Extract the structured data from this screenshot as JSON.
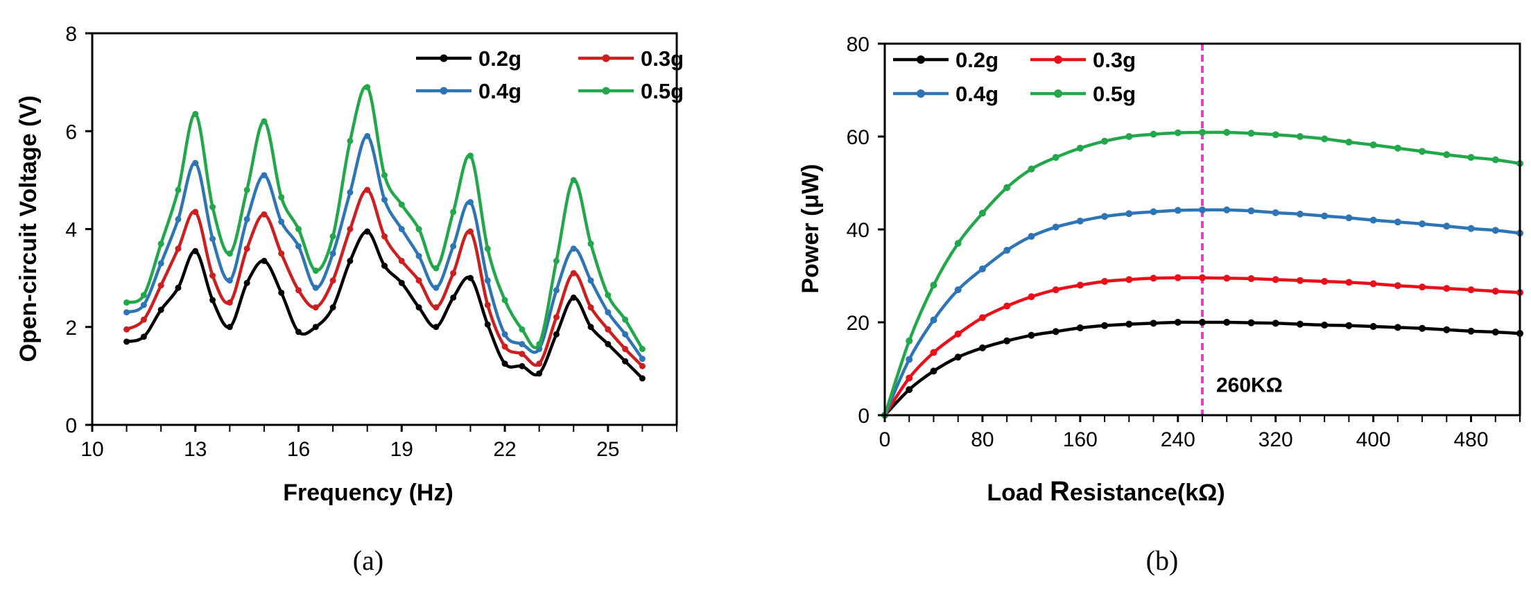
{
  "chart_data": [
    {
      "type": "line",
      "panel": "a",
      "panel_label": "(a)",
      "xlabel": "Frequency (Hz)",
      "ylabel": "Open-circuit Voltage  (V)",
      "xlim": [
        10,
        27
      ],
      "ylim": [
        0,
        8
      ],
      "xticks": [
        10,
        13,
        16,
        19,
        22,
        25
      ],
      "yticks": [
        0,
        2,
        4,
        6,
        8
      ],
      "x": [
        11,
        11.5,
        12,
        12.5,
        13,
        13.5,
        14,
        14.5,
        15,
        15.5,
        16,
        16.5,
        17,
        17.5,
        18,
        18.5,
        19,
        19.5,
        20,
        20.5,
        21,
        21.5,
        22,
        22.5,
        23,
        23.5,
        24,
        24.5,
        25,
        25.5,
        26
      ],
      "series": [
        {
          "name": "0.2g",
          "color": "#000000",
          "values": [
            1.7,
            1.8,
            2.35,
            2.8,
            3.55,
            2.55,
            2.0,
            2.9,
            3.35,
            2.7,
            1.9,
            2.0,
            2.4,
            3.35,
            3.95,
            3.25,
            2.9,
            2.4,
            2.0,
            2.6,
            3.0,
            2.05,
            1.25,
            1.2,
            1.05,
            1.85,
            2.6,
            2.0,
            1.65,
            1.3,
            0.95
          ]
        },
        {
          "name": "0.3g",
          "color": "#cc1f1f",
          "values": [
            1.95,
            2.15,
            2.85,
            3.6,
            4.35,
            3.05,
            2.5,
            3.6,
            4.3,
            3.5,
            2.75,
            2.4,
            2.95,
            4.0,
            4.8,
            3.85,
            3.35,
            2.95,
            2.4,
            3.1,
            3.95,
            2.45,
            1.6,
            1.45,
            1.25,
            2.2,
            3.1,
            2.4,
            1.95,
            1.55,
            1.2
          ]
        },
        {
          "name": "0.4g",
          "color": "#2e75b6",
          "values": [
            2.3,
            2.45,
            3.3,
            4.2,
            5.35,
            3.8,
            2.95,
            4.2,
            5.1,
            4.15,
            3.65,
            2.8,
            3.5,
            4.75,
            5.9,
            4.6,
            4.0,
            3.45,
            2.8,
            3.65,
            4.55,
            2.95,
            1.85,
            1.65,
            1.55,
            2.75,
            3.6,
            2.95,
            2.3,
            1.85,
            1.35
          ]
        },
        {
          "name": "0.5g",
          "color": "#22a74a",
          "values": [
            2.5,
            2.65,
            3.7,
            4.8,
            6.35,
            4.45,
            3.5,
            4.8,
            6.2,
            4.65,
            4.0,
            3.15,
            3.85,
            5.8,
            6.9,
            5.1,
            4.5,
            4.0,
            3.2,
            4.35,
            5.5,
            3.6,
            2.55,
            1.95,
            1.65,
            3.35,
            5.0,
            3.7,
            2.65,
            2.15,
            1.55
          ]
        }
      ]
    },
    {
      "type": "line",
      "panel": "b",
      "panel_label": "(b)",
      "xlabel_bold_prefix": "Load ",
      "xlabel_big": "R",
      "xlabel_rest": "esistance(kΩ)",
      "ylabel": "Power (μW)",
      "xlim": [
        0,
        520
      ],
      "ylim": [
        0,
        80
      ],
      "xticks": [
        0,
        80,
        160,
        240,
        320,
        400,
        480
      ],
      "yticks": [
        0,
        20,
        40,
        60,
        80
      ],
      "annotation": {
        "text": "260KΩ",
        "x": 260,
        "color": "#e83ecf"
      },
      "x": [
        0,
        20,
        40,
        60,
        80,
        100,
        120,
        140,
        160,
        180,
        200,
        220,
        240,
        260,
        280,
        300,
        320,
        340,
        360,
        380,
        400,
        420,
        440,
        460,
        480,
        500,
        520
      ],
      "series": [
        {
          "name": "0.2g",
          "color": "#000000",
          "values": [
            0,
            5.5,
            9.5,
            12.5,
            14.5,
            16.0,
            17.2,
            18.0,
            18.8,
            19.3,
            19.6,
            19.8,
            20.0,
            20.0,
            20.0,
            19.9,
            19.8,
            19.6,
            19.4,
            19.3,
            19.1,
            18.9,
            18.7,
            18.4,
            18.1,
            17.9,
            17.6
          ]
        },
        {
          "name": "0.3g",
          "color": "#e8111a",
          "values": [
            0,
            8.0,
            13.5,
            17.5,
            21.0,
            23.5,
            25.5,
            27.0,
            28.0,
            28.8,
            29.2,
            29.5,
            29.6,
            29.6,
            29.5,
            29.4,
            29.2,
            29.0,
            28.8,
            28.6,
            28.3,
            27.9,
            27.6,
            27.3,
            27.0,
            26.7,
            26.4
          ]
        },
        {
          "name": "0.4g",
          "color": "#2e75b6",
          "values": [
            0,
            12.0,
            20.5,
            27.0,
            31.5,
            35.5,
            38.5,
            40.5,
            41.8,
            42.8,
            43.4,
            43.8,
            44.1,
            44.2,
            44.2,
            44.0,
            43.6,
            43.3,
            42.9,
            42.5,
            42.0,
            41.6,
            41.2,
            40.7,
            40.2,
            39.8,
            39.2
          ]
        },
        {
          "name": "0.5g",
          "color": "#22a74a",
          "values": [
            0,
            16.0,
            28.0,
            37.0,
            43.5,
            49.0,
            53.0,
            55.5,
            57.5,
            59.0,
            60.0,
            60.5,
            60.8,
            60.9,
            60.9,
            60.7,
            60.4,
            60.0,
            59.5,
            58.8,
            58.2,
            57.5,
            56.8,
            56.1,
            55.5,
            55.0,
            54.2
          ]
        }
      ]
    }
  ]
}
